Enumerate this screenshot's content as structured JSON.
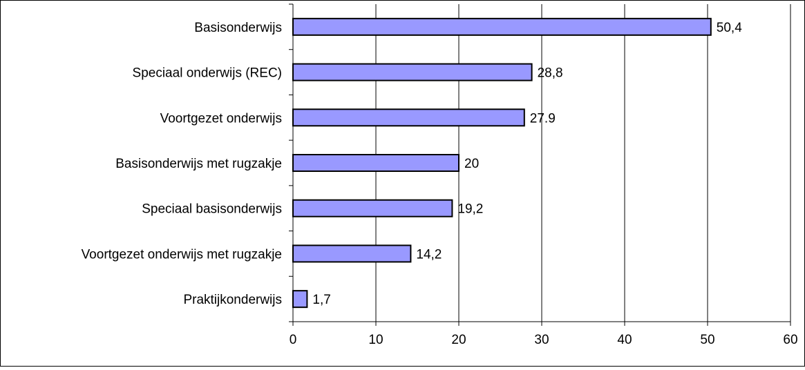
{
  "chart_data": {
    "type": "bar",
    "orientation": "horizontal",
    "categories": [
      "Basisonderwijs",
      "Speciaal onderwijs (REC)",
      "Voortgezet onderwijs",
      "Basisonderwijs met rugzakje",
      "Speciaal basisonderwijs",
      "Voortgezet onderwijs met rugzakje",
      "Praktijkonderwijs"
    ],
    "values": [
      50.4,
      28.8,
      27.9,
      20,
      19.2,
      14.2,
      1.7
    ],
    "value_labels": [
      "50,4",
      "28,8",
      "27.9",
      "20",
      "19,2",
      "14,2",
      "1,7"
    ],
    "xlim": [
      0,
      60
    ],
    "xticks": [
      0,
      10,
      20,
      30,
      40,
      50,
      60
    ],
    "xtick_labels": [
      "0",
      "10",
      "20",
      "30",
      "40",
      "50",
      "60"
    ],
    "grid": "vertical",
    "legend": "none",
    "colors": {
      "bar_fill": "#9999ff",
      "bar_stroke": "#000000",
      "grid": "#000000",
      "frame": "#000000"
    }
  }
}
